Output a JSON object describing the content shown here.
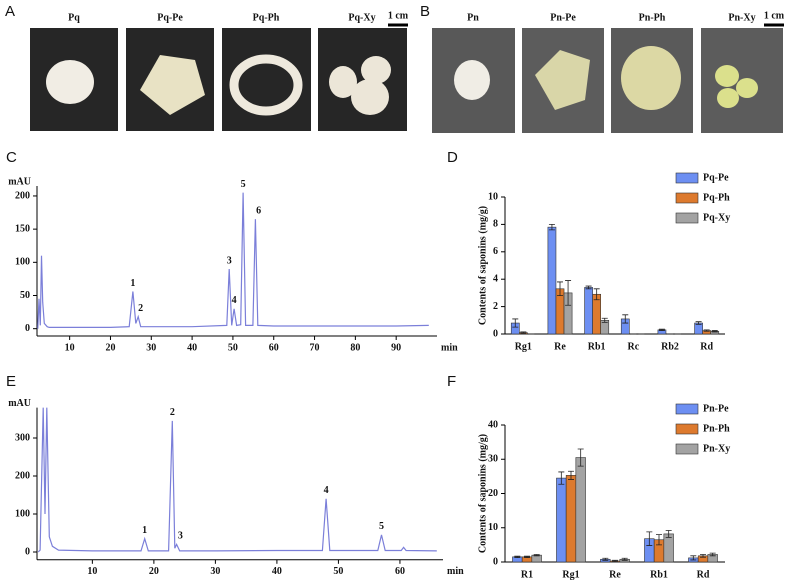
{
  "photo_panels": [
    {
      "letter": "A",
      "labels": [
        "Pq",
        "Pq-Pe",
        "Pq-Ph",
        "Pq-Xy"
      ],
      "scale": "1 cm"
    },
    {
      "letter": "B",
      "labels": [
        "Pn",
        "Pn-Pe",
        "Pn-Ph",
        "Pn-Xy"
      ],
      "scale": "1 cm"
    }
  ],
  "chart_data": [
    {
      "type": "line",
      "label": "C",
      "ylabel": "mAU",
      "xlabel": "min",
      "color": "#7b7fd9",
      "xlim": [
        2,
        100
      ],
      "ylim": [
        -5,
        215
      ],
      "xticks": [
        10,
        20,
        30,
        40,
        50,
        60,
        70,
        80,
        90
      ],
      "yticks": [
        0,
        50,
        100,
        150,
        200
      ],
      "x": [
        2.2,
        2.5,
        2.8,
        3.1,
        3.4,
        3.8,
        4.5,
        5,
        10,
        20,
        24.6,
        25.5,
        26.2,
        26.8,
        27.4,
        30,
        40,
        48.5,
        49.1,
        49.7,
        50.3,
        50.9,
        51.9,
        52.5,
        53.1,
        54.9,
        55.5,
        56.1,
        60,
        70,
        80,
        90,
        98
      ],
      "values": [
        0,
        45,
        5,
        110,
        40,
        8,
        3,
        2,
        2,
        2,
        3,
        56,
        8,
        18,
        3,
        3,
        3,
        5,
        90,
        5,
        30,
        5,
        6,
        205,
        5,
        5,
        165,
        5,
        4,
        4,
        4,
        4,
        5
      ],
      "annotations": [
        {
          "text": "1",
          "x": 25.5,
          "y": 56
        },
        {
          "text": "2",
          "x": 27.4,
          "y": 18
        },
        {
          "text": "3",
          "x": 49.1,
          "y": 90
        },
        {
          "text": "4",
          "x": 50.3,
          "y": 30
        },
        {
          "text": "5",
          "x": 52.5,
          "y": 205
        },
        {
          "text": "6",
          "x": 56.3,
          "y": 165
        }
      ]
    },
    {
      "type": "bar",
      "label": "D",
      "ylabel": "Contents of saponins (mg/g)",
      "categories": [
        "Rg1",
        "Re",
        "Rb1",
        "Rc",
        "Rb2",
        "Rd"
      ],
      "ylim": [
        0,
        10
      ],
      "yticks": [
        0,
        2,
        4,
        6,
        8,
        10
      ],
      "series": [
        {
          "name": "Pq-Pe",
          "color": "#6d8ff2",
          "values": [
            0.8,
            7.8,
            3.4,
            1.1,
            0.3,
            0.8
          ],
          "errors": [
            0.3,
            0.2,
            0.1,
            0.3,
            0.05,
            0.1
          ]
        },
        {
          "name": "Pq-Ph",
          "color": "#dd7a2e",
          "values": [
            0.1,
            3.3,
            2.9,
            0,
            0,
            0.25
          ],
          "errors": [
            0.05,
            0.5,
            0.4,
            0,
            0,
            0.05
          ]
        },
        {
          "name": "Pq-Xy",
          "color": "#a3a3a3",
          "values": [
            0,
            3.0,
            1.0,
            0,
            0,
            0.2
          ],
          "errors": [
            0,
            0.9,
            0.15,
            0,
            0,
            0.05
          ]
        }
      ]
    },
    {
      "type": "line",
      "label": "E",
      "ylabel": "mAU",
      "xlabel": "min",
      "color": "#7b7fd9",
      "xlim": [
        1,
        67
      ],
      "ylim": [
        -10,
        380
      ],
      "xticks": [
        10,
        20,
        30,
        40,
        50,
        60
      ],
      "yticks": [
        0,
        100,
        200,
        300
      ],
      "x": [
        1.2,
        1.5,
        2.0,
        2.3,
        2.6,
        3.0,
        3.5,
        4.5,
        10,
        17.9,
        18.5,
        19.1,
        22.4,
        23.0,
        23.4,
        23.7,
        24.2,
        30,
        40,
        47.4,
        48.0,
        48.6,
        56.4,
        57.0,
        57.6,
        60.2,
        60.6,
        61,
        66
      ],
      "values": [
        0,
        5,
        380,
        100,
        380,
        40,
        15,
        5,
        3,
        3,
        35,
        3,
        3,
        345,
        10,
        20,
        3,
        3,
        4,
        4,
        140,
        4,
        4,
        45,
        4,
        4,
        12,
        4,
        3
      ],
      "annotations": [
        {
          "text": "1",
          "x": 18.5,
          "y": 35
        },
        {
          "text": "2",
          "x": 23.0,
          "y": 345
        },
        {
          "text": "3",
          "x": 24.3,
          "y": 20
        },
        {
          "text": "4",
          "x": 48.0,
          "y": 140
        },
        {
          "text": "5",
          "x": 57.0,
          "y": 45
        }
      ]
    },
    {
      "type": "bar",
      "label": "F",
      "ylabel": "Contents of saponins (mg/g)",
      "categories": [
        "R1",
        "Rg1",
        "Re",
        "Rb1",
        "Rd"
      ],
      "ylim": [
        0,
        40
      ],
      "yticks": [
        0,
        10,
        20,
        30,
        40
      ],
      "series": [
        {
          "name": "Pn-Pe",
          "color": "#6d8ff2",
          "values": [
            1.5,
            24.5,
            0.8,
            6.8,
            1.2
          ],
          "errors": [
            0.2,
            1.8,
            0.3,
            2.0,
            0.6
          ]
        },
        {
          "name": "Pn-Ph",
          "color": "#dd7a2e",
          "values": [
            1.5,
            25.3,
            0.3,
            6.5,
            1.8
          ],
          "errors": [
            0.2,
            1.2,
            0.2,
            1.5,
            0.4
          ]
        },
        {
          "name": "Pn-Xy",
          "color": "#a3a3a3",
          "values": [
            2.0,
            30.5,
            0.8,
            8.2,
            2.2
          ],
          "errors": [
            0.2,
            2.5,
            0.3,
            1.0,
            0.4
          ]
        }
      ]
    }
  ]
}
